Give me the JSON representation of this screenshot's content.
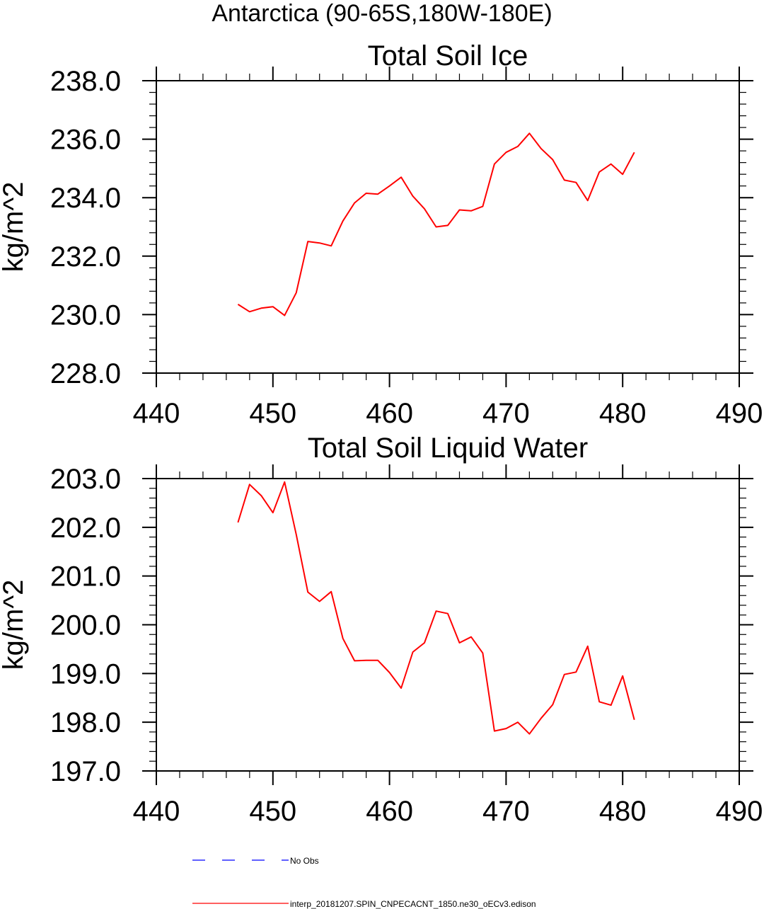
{
  "figure": {
    "suptitle": "Antarctica (90-65S,180W-180E)",
    "colors": {
      "series": "#ff0000",
      "obs": "#0000ff",
      "axis": "#000000"
    }
  },
  "legend": {
    "placement": "bottom-left",
    "entries": [
      {
        "label": "No Obs",
        "style": "dashed",
        "color": "#0000ff"
      },
      {
        "label": "interp_20181207.SPIN_CNPECACNT_1850.ne30_oECv3.edison",
        "style": "solid",
        "color": "#ff0000"
      }
    ]
  },
  "chart_data": [
    {
      "type": "line",
      "title": "Total Soil Ice",
      "xlabel": "",
      "ylabel": "kg/m^2",
      "xlim": [
        440,
        490
      ],
      "ylim": [
        228,
        238
      ],
      "xticks": [
        440,
        450,
        460,
        470,
        480,
        490
      ],
      "xtick_labels": [
        "440",
        "450",
        "460",
        "470",
        "480",
        "490"
      ],
      "yticks": [
        228,
        230,
        232,
        234,
        236,
        238
      ],
      "ytick_labels": [
        "228.0",
        "230.0",
        "232.0",
        "234.0",
        "236.0",
        "238.0"
      ],
      "grid": false,
      "x": [
        447,
        448,
        449,
        450,
        451,
        452,
        453,
        454,
        455,
        456,
        457,
        458,
        459,
        460,
        461,
        462,
        463,
        464,
        465,
        466,
        467,
        468,
        469,
        470,
        471,
        472,
        473,
        474,
        475,
        476,
        477,
        478,
        479,
        480,
        481
      ],
      "series": [
        {
          "name": "interp_20181207.SPIN_CNPECACNT_1850.ne30_oECv3.edison",
          "values": [
            230.35,
            230.1,
            230.22,
            230.27,
            229.97,
            230.75,
            232.5,
            232.45,
            232.35,
            233.2,
            233.82,
            234.15,
            234.12,
            234.4,
            234.7,
            234.05,
            233.62,
            233.0,
            233.05,
            233.58,
            233.55,
            233.7,
            235.15,
            235.55,
            235.75,
            236.2,
            235.68,
            235.3,
            234.6,
            234.52,
            233.9,
            234.88,
            235.15,
            234.8,
            235.55
          ]
        }
      ]
    },
    {
      "type": "line",
      "title": "Total Soil Liquid Water",
      "xlabel": "",
      "ylabel": "kg/m^2",
      "xlim": [
        440,
        490
      ],
      "ylim": [
        197,
        203
      ],
      "xticks": [
        440,
        450,
        460,
        470,
        480,
        490
      ],
      "xtick_labels": [
        "440",
        "450",
        "460",
        "470",
        "480",
        "490"
      ],
      "yticks": [
        197,
        198,
        199,
        200,
        201,
        202,
        203
      ],
      "ytick_labels": [
        "197.0",
        "198.0",
        "199.0",
        "200.0",
        "201.0",
        "202.0",
        "203.0"
      ],
      "grid": false,
      "x": [
        447,
        448,
        449,
        450,
        451,
        452,
        453,
        454,
        455,
        456,
        457,
        458,
        459,
        460,
        461,
        462,
        463,
        464,
        465,
        466,
        467,
        468,
        469,
        470,
        471,
        472,
        473,
        474,
        475,
        476,
        477,
        478,
        479,
        480,
        481
      ],
      "series": [
        {
          "name": "interp_20181207.SPIN_CNPECACNT_1850.ne30_oECv3.edison",
          "values": [
            202.1,
            202.88,
            202.65,
            202.3,
            202.93,
            201.85,
            200.67,
            200.48,
            200.68,
            199.72,
            199.26,
            199.27,
            199.27,
            199.02,
            198.7,
            199.44,
            199.63,
            200.28,
            200.23,
            199.63,
            199.75,
            199.42,
            197.82,
            197.87,
            198.0,
            197.76,
            198.08,
            198.36,
            198.98,
            199.03,
            199.56,
            198.42,
            198.35,
            198.95,
            198.05
          ]
        }
      ]
    }
  ]
}
